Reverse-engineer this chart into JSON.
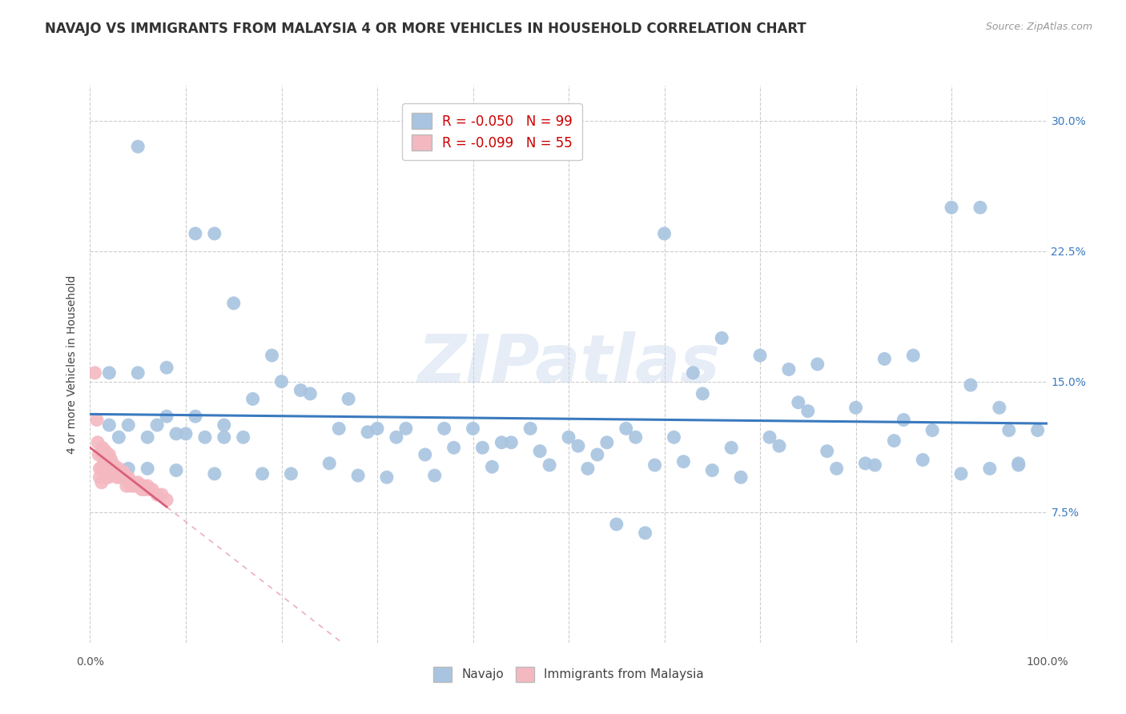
{
  "title": "NAVAJO VS IMMIGRANTS FROM MALAYSIA 4 OR MORE VEHICLES IN HOUSEHOLD CORRELATION CHART",
  "source": "Source: ZipAtlas.com",
  "ylabel": "4 or more Vehicles in Household",
  "watermark": "ZIPatlas",
  "navajo_R": -0.05,
  "navajo_N": 99,
  "malaysia_R": -0.099,
  "malaysia_N": 55,
  "xlim": [
    0.0,
    1.0
  ],
  "ylim": [
    0.0,
    0.32
  ],
  "xtick_positions": [
    0.0,
    1.0
  ],
  "xticklabels": [
    "0.0%",
    "100.0%"
  ],
  "ytick_positions": [
    0.075,
    0.15,
    0.225,
    0.3
  ],
  "yticklabels_right": [
    "7.5%",
    "15.0%",
    "22.5%",
    "30.0%"
  ],
  "navajo_color": "#a8c4e0",
  "malaysia_color": "#f4b8c1",
  "navajo_line_color": "#3a7abf",
  "malaysia_line_color": "#d9607a",
  "malaysia_line_dash": [
    4,
    3
  ],
  "background_color": "#ffffff",
  "grid_color": "#cccccc",
  "navajo_scatter_x": [
    0.05,
    0.11,
    0.13,
    0.02,
    0.04,
    0.07,
    0.09,
    0.1,
    0.12,
    0.14,
    0.16,
    0.17,
    0.19,
    0.22,
    0.27,
    0.3,
    0.33,
    0.37,
    0.4,
    0.43,
    0.46,
    0.5,
    0.53,
    0.56,
    0.6,
    0.63,
    0.66,
    0.7,
    0.73,
    0.76,
    0.8,
    0.83,
    0.86,
    0.9,
    0.93,
    0.96,
    0.99,
    0.03,
    0.06,
    0.08,
    0.11,
    0.14,
    0.02,
    0.05,
    0.08,
    0.2,
    0.23,
    0.26,
    0.29,
    0.32,
    0.35,
    0.38,
    0.41,
    0.44,
    0.47,
    0.51,
    0.54,
    0.57,
    0.61,
    0.64,
    0.67,
    0.71,
    0.74,
    0.77,
    0.81,
    0.84,
    0.87,
    0.91,
    0.94,
    0.97,
    0.04,
    0.06,
    0.09,
    0.13,
    0.18,
    0.25,
    0.31,
    0.36,
    0.48,
    0.52,
    0.58,
    0.62,
    0.68,
    0.72,
    0.78,
    0.82,
    0.88,
    0.92,
    0.97,
    0.15,
    0.21,
    0.28,
    0.55,
    0.65,
    0.75,
    0.85,
    0.95,
    0.42,
    0.59
  ],
  "navajo_scatter_y": [
    0.285,
    0.235,
    0.235,
    0.125,
    0.125,
    0.125,
    0.12,
    0.12,
    0.118,
    0.118,
    0.118,
    0.14,
    0.165,
    0.145,
    0.14,
    0.123,
    0.123,
    0.123,
    0.123,
    0.115,
    0.123,
    0.118,
    0.108,
    0.123,
    0.235,
    0.155,
    0.175,
    0.165,
    0.157,
    0.16,
    0.135,
    0.163,
    0.165,
    0.25,
    0.25,
    0.122,
    0.122,
    0.118,
    0.118,
    0.13,
    0.13,
    0.125,
    0.155,
    0.155,
    0.158,
    0.15,
    0.143,
    0.123,
    0.121,
    0.118,
    0.108,
    0.112,
    0.112,
    0.115,
    0.11,
    0.113,
    0.115,
    0.118,
    0.118,
    0.143,
    0.112,
    0.118,
    0.138,
    0.11,
    0.103,
    0.116,
    0.105,
    0.097,
    0.1,
    0.102,
    0.1,
    0.1,
    0.099,
    0.097,
    0.097,
    0.103,
    0.095,
    0.096,
    0.102,
    0.1,
    0.063,
    0.104,
    0.095,
    0.113,
    0.1,
    0.102,
    0.122,
    0.148,
    0.103,
    0.195,
    0.097,
    0.096,
    0.068,
    0.099,
    0.133,
    0.128,
    0.135,
    0.101,
    0.102
  ],
  "malaysia_scatter_x": [
    0.005,
    0.007,
    0.008,
    0.009,
    0.01,
    0.01,
    0.012,
    0.012,
    0.013,
    0.013,
    0.014,
    0.015,
    0.015,
    0.016,
    0.017,
    0.017,
    0.018,
    0.019,
    0.019,
    0.02,
    0.021,
    0.022,
    0.022,
    0.023,
    0.024,
    0.025,
    0.026,
    0.027,
    0.028,
    0.029,
    0.03,
    0.031,
    0.032,
    0.033,
    0.034,
    0.035,
    0.036,
    0.037,
    0.038,
    0.04,
    0.041,
    0.043,
    0.045,
    0.047,
    0.05,
    0.052,
    0.054,
    0.056,
    0.058,
    0.06,
    0.062,
    0.065,
    0.07,
    0.075,
    0.08
  ],
  "malaysia_scatter_y": [
    0.155,
    0.128,
    0.115,
    0.108,
    0.1,
    0.095,
    0.1,
    0.092,
    0.112,
    0.108,
    0.103,
    0.108,
    0.1,
    0.11,
    0.102,
    0.095,
    0.108,
    0.102,
    0.095,
    0.108,
    0.102,
    0.105,
    0.098,
    0.102,
    0.098,
    0.102,
    0.098,
    0.1,
    0.095,
    0.098,
    0.1,
    0.095,
    0.098,
    0.098,
    0.095,
    0.098,
    0.095,
    0.095,
    0.09,
    0.095,
    0.092,
    0.09,
    0.092,
    0.09,
    0.092,
    0.09,
    0.088,
    0.09,
    0.088,
    0.09,
    0.088,
    0.088,
    0.085,
    0.085,
    0.082
  ]
}
